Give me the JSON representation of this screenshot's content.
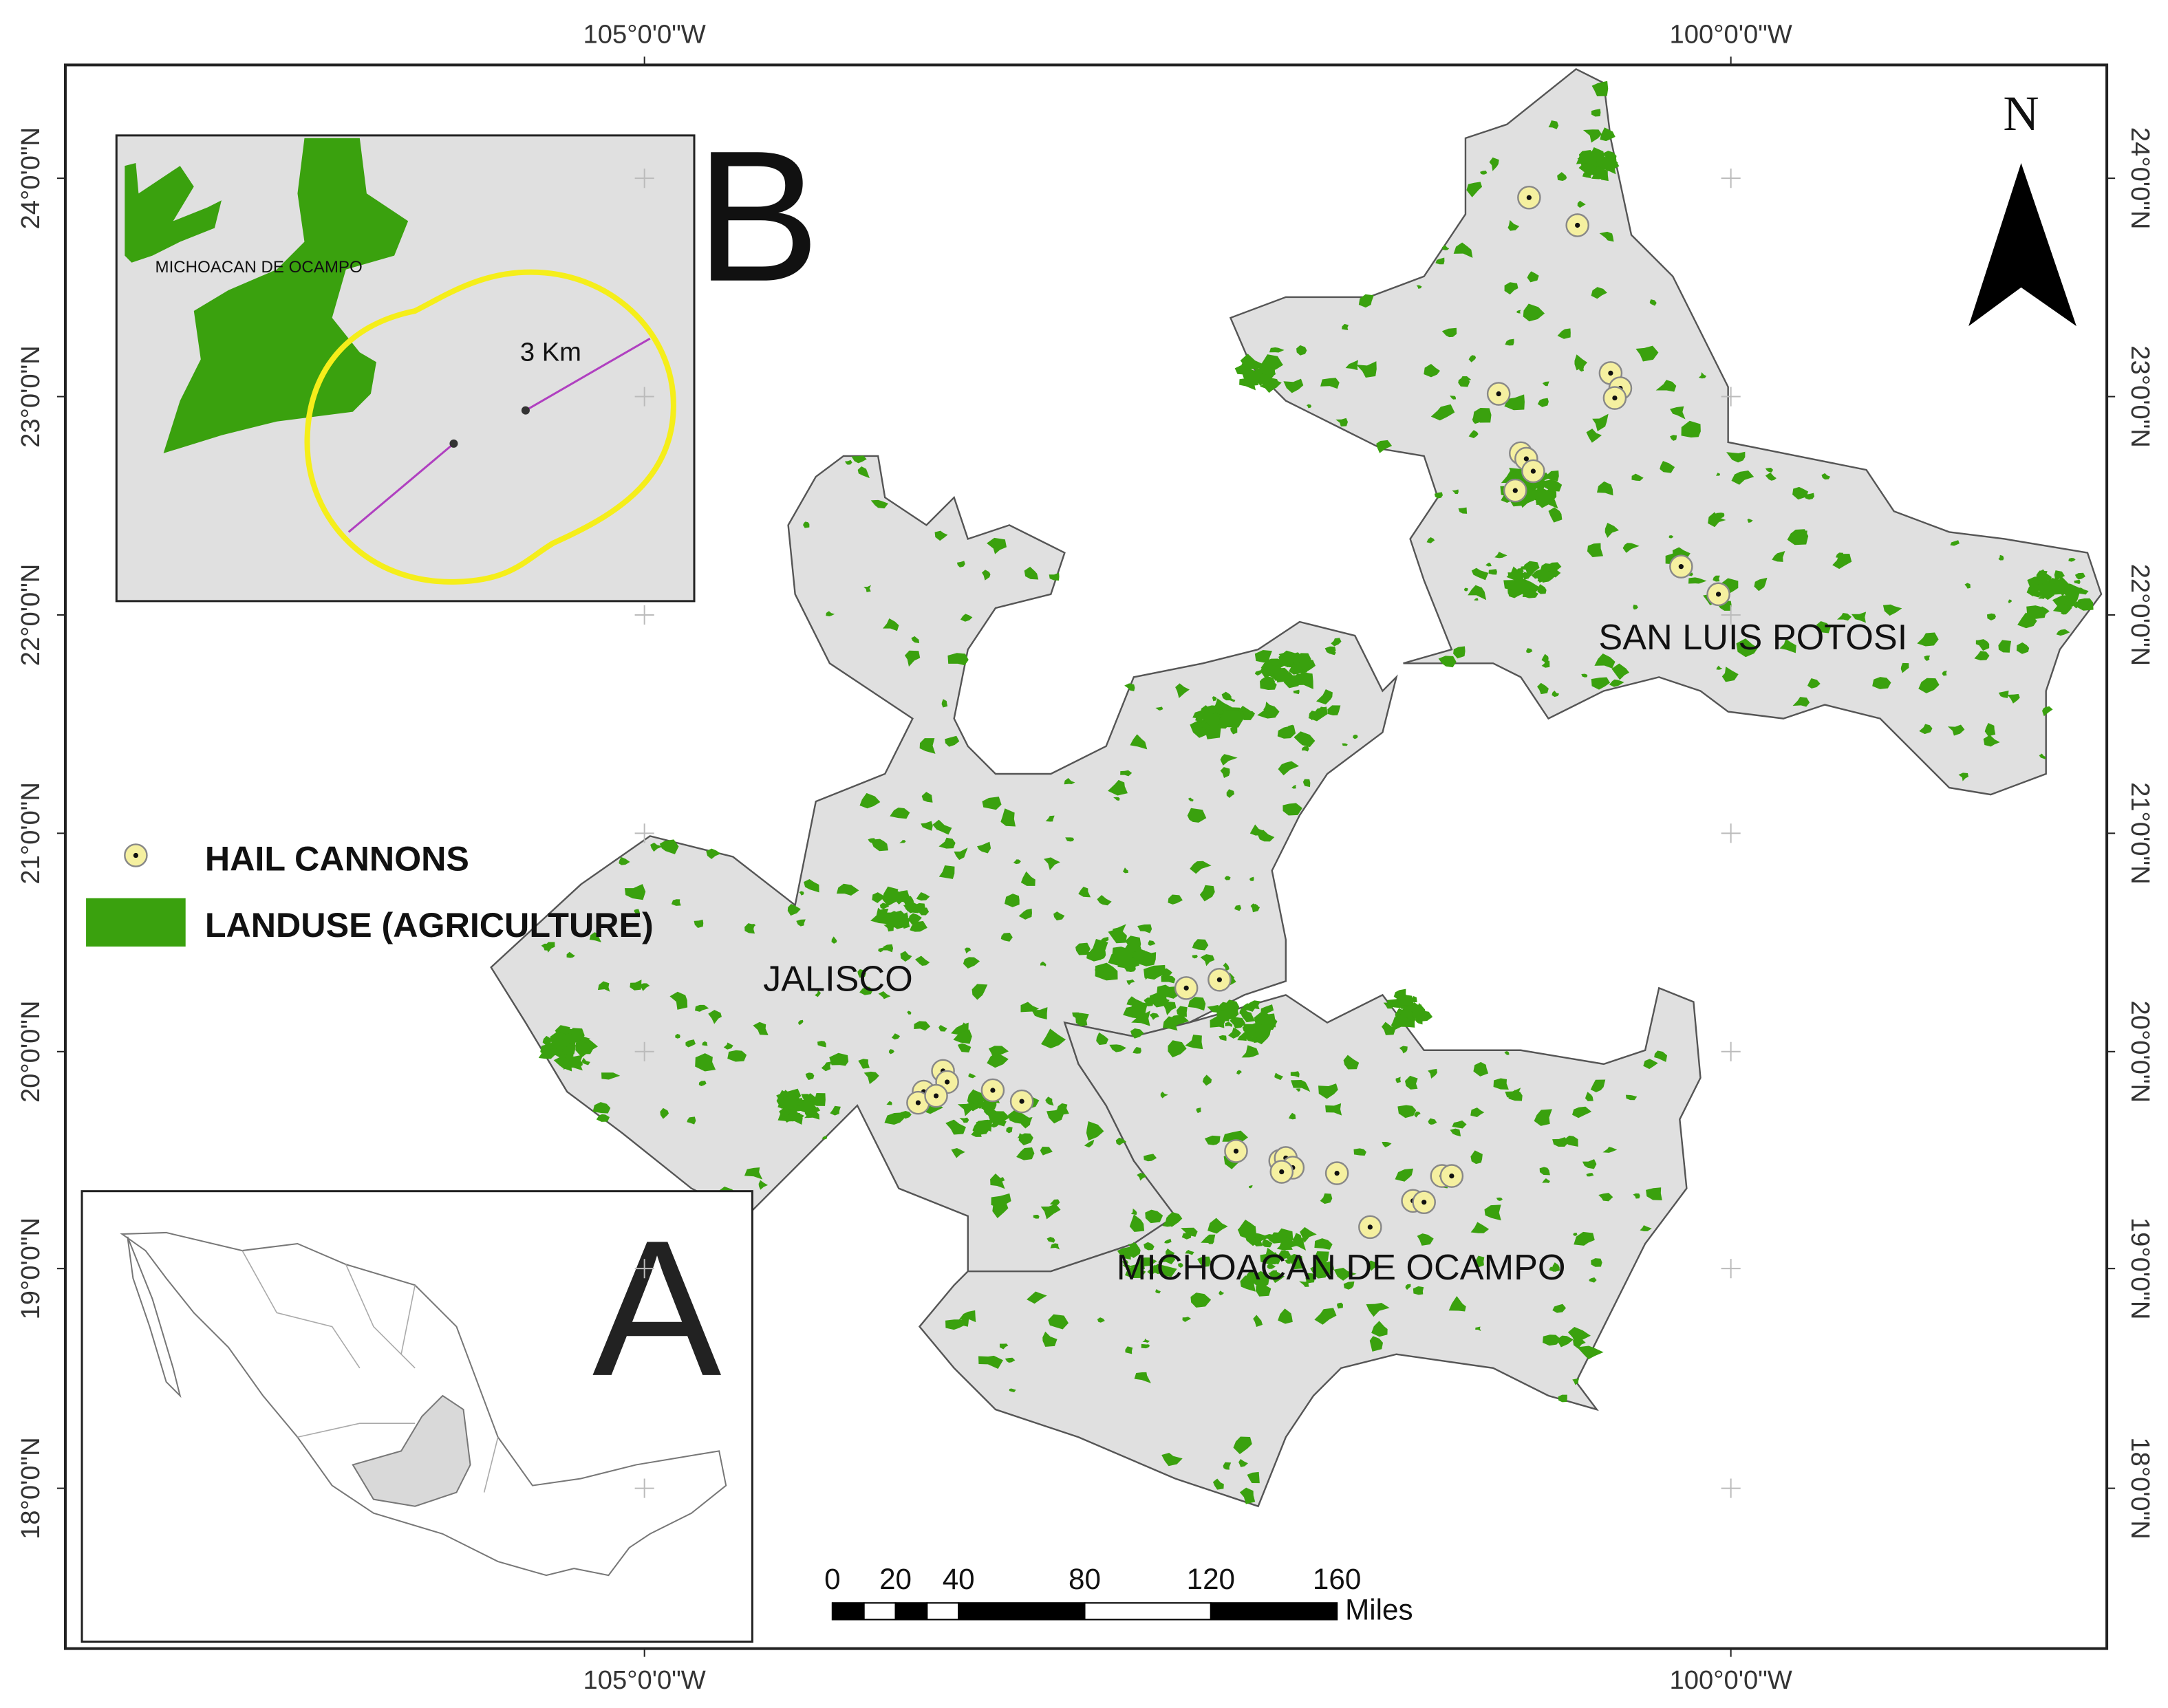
{
  "map": {
    "graticule": {
      "lon_labels": [
        "105°0'0\"W",
        "100°0'0\"W"
      ],
      "lat_labels": [
        "24°0'0\"N",
        "23°0'0\"N",
        "22°0'0\"N",
        "21°0'0\"N",
        "20°0'0\"N",
        "19°0'0\"N",
        "18°0'0\"N"
      ]
    },
    "inset_b": {
      "letter": "B",
      "state_label": "MICHOACAN DE OCAMPO",
      "buffer_label": "3 Km"
    },
    "inset_a": {
      "letter": "A"
    },
    "legend": {
      "items": [
        "HAIL CANNONS",
        "LANDUSE (AGRICULTURE)"
      ]
    },
    "regions": [
      "JALISCO",
      "SAN LUIS POTOSI",
      "MICHOACAN DE OCAMPO"
    ],
    "north": "N",
    "scale_bar": {
      "ticks": [
        0,
        20,
        40,
        80,
        120,
        160
      ],
      "unit": "Miles"
    }
  }
}
